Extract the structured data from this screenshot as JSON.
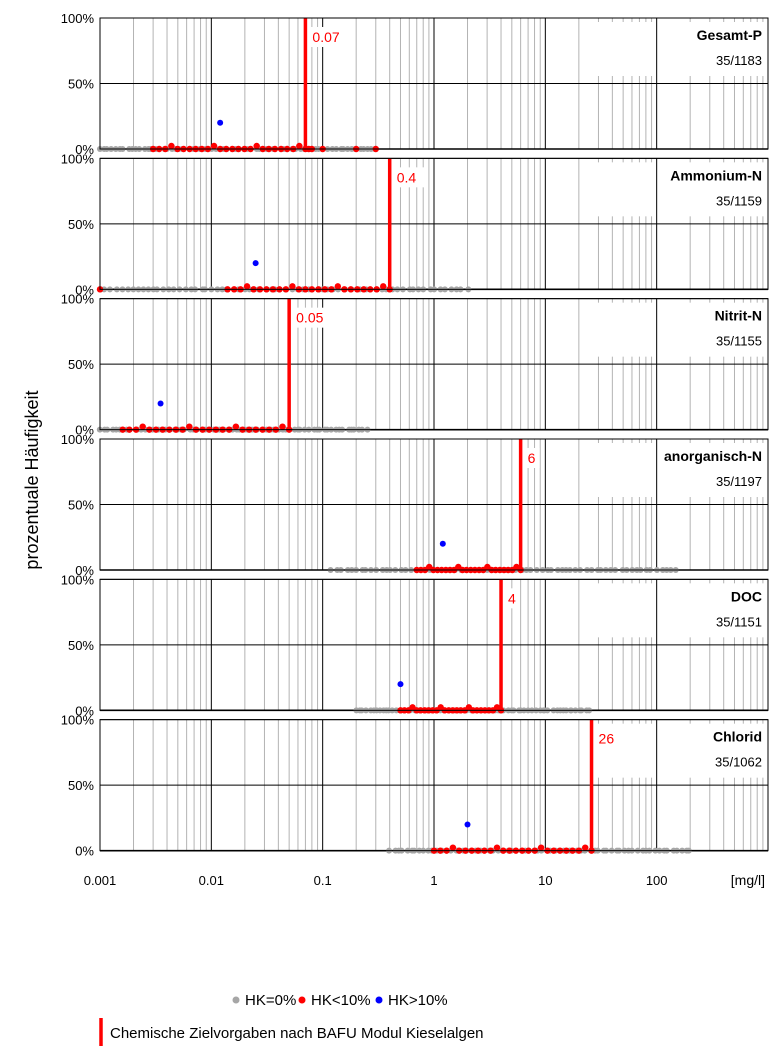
{
  "ylabel": "prozentuale Häufigkeit",
  "xunit": "[mg/l]",
  "x_ticks": [
    "0.001",
    "0.01",
    "0.1",
    "1",
    "10",
    "100"
  ],
  "y_ticks": [
    "0%",
    "50%",
    "100%"
  ],
  "colors": {
    "hk0": "#a6a6a6",
    "hk10": "#ff0000",
    "hkgt10": "#0000ff",
    "target": "#ff0000",
    "minor_grid": "#b3b3b3",
    "major_grid": "#000000"
  },
  "legend": {
    "items": [
      {
        "label": "HK=0%",
        "color": "#a6a6a6"
      },
      {
        "label": "HK<10%",
        "color": "#ff0000"
      },
      {
        "label": "HK>10%",
        "color": "#0000ff"
      }
    ],
    "target_label": "Chemische Zielvorgaben nach BAFU Modul Kieselalgen"
  },
  "chart_data": [
    {
      "type": "scatter",
      "title": "Gesamt-P",
      "count": "35/1183",
      "target": 0.07,
      "target_label": "0.07",
      "x_scale": "log",
      "xlim": [
        0.001,
        1000
      ],
      "ylim": [
        0,
        100
      ],
      "grid": true,
      "hk0_range": [
        0.001,
        0.3
      ],
      "hk10_range": [
        0.003,
        0.07
      ],
      "hk10_extra": [
        0.075,
        0.08,
        0.1,
        0.2,
        0.3
      ],
      "hkgt10": [
        {
          "x": 0.012,
          "y": 20
        }
      ]
    },
    {
      "type": "scatter",
      "title": "Ammonium-N",
      "count": "35/1159",
      "target": 0.4,
      "target_label": "0.4",
      "x_scale": "log",
      "xlim": [
        0.001,
        1000
      ],
      "ylim": [
        0,
        100
      ],
      "grid": true,
      "hk0_range": [
        0.001,
        2
      ],
      "hk10_range": [
        0.014,
        0.4
      ],
      "hk10_extra": [
        0.001
      ],
      "hkgt10": [
        {
          "x": 0.025,
          "y": 20
        }
      ]
    },
    {
      "type": "scatter",
      "title": "Nitrit-N",
      "count": "35/1155",
      "target": 0.05,
      "target_label": "0.05",
      "x_scale": "log",
      "xlim": [
        0.001,
        1000
      ],
      "ylim": [
        0,
        100
      ],
      "grid": true,
      "hk0_range": [
        0.001,
        0.25
      ],
      "hk10_range": [
        0.0016,
        0.05
      ],
      "hk10_extra": [],
      "hkgt10": [
        {
          "x": 0.0035,
          "y": 20
        }
      ]
    },
    {
      "type": "scatter",
      "title": "anorganisch-N",
      "count": "35/1197",
      "target": 6,
      "target_label": "6",
      "x_scale": "log",
      "xlim": [
        0.001,
        1000
      ],
      "ylim": [
        0,
        100
      ],
      "grid": true,
      "hk0_range": [
        0.12,
        150
      ],
      "hk10_range": [
        0.7,
        6
      ],
      "hk10_extra": [],
      "hkgt10": [
        {
          "x": 1.2,
          "y": 20
        }
      ]
    },
    {
      "type": "scatter",
      "title": "DOC",
      "count": "35/1151",
      "target": 4,
      "target_label": "4",
      "x_scale": "log",
      "xlim": [
        0.001,
        1000
      ],
      "ylim": [
        0,
        100
      ],
      "grid": true,
      "hk0_range": [
        0.2,
        25
      ],
      "hk10_range": [
        0.5,
        4
      ],
      "hk10_extra": [],
      "hkgt10": [
        {
          "x": 0.5,
          "y": 20
        }
      ]
    },
    {
      "type": "scatter",
      "title": "Chlorid",
      "count": "35/1062",
      "target": 26,
      "target_label": "26",
      "x_scale": "log",
      "xlim": [
        0.001,
        1000
      ],
      "ylim": [
        0,
        100
      ],
      "grid": true,
      "hk0_range": [
        0.4,
        200
      ],
      "hk10_range": [
        1,
        26
      ],
      "hk10_extra": [],
      "hkgt10": [
        {
          "x": 2,
          "y": 20
        }
      ]
    }
  ]
}
